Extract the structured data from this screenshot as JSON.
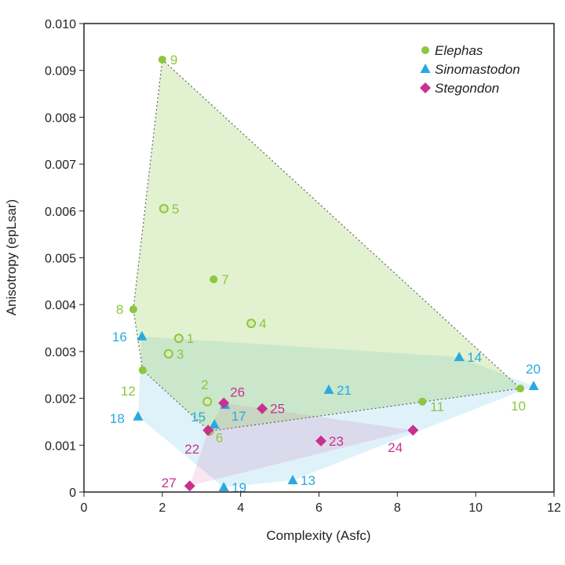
{
  "chart_data": {
    "type": "scatter",
    "title": "",
    "xlabel": "Complexity (Asfc)",
    "ylabel": "Anisotropy (epLsar)",
    "xlim": [
      0,
      12
    ],
    "ylim": [
      0,
      0.01
    ],
    "xticks": [
      "0",
      "2",
      "4",
      "6",
      "8",
      "10",
      "12"
    ],
    "yticks": [
      "0",
      "0.001",
      "0.002",
      "0.003",
      "0.004",
      "0.005",
      "0.006",
      "0.007",
      "0.008",
      "0.009",
      "0.010"
    ],
    "grid": false,
    "legend_position": "top-right",
    "series": [
      {
        "name": "Elephas",
        "marker": "circle",
        "color": "#8dc63f",
        "points": [
          {
            "label": "9",
            "x": 2.0,
            "y": 0.00923
          },
          {
            "label": "5",
            "x": 2.04,
            "y": 0.00605
          },
          {
            "label": "7",
            "x": 3.31,
            "y": 0.00454
          },
          {
            "label": "8",
            "x": 1.26,
            "y": 0.0039
          },
          {
            "label": "4",
            "x": 4.27,
            "y": 0.0036
          },
          {
            "label": "1",
            "x": 2.42,
            "y": 0.00328
          },
          {
            "label": "3",
            "x": 2.16,
            "y": 0.00295
          },
          {
            "label": "12",
            "x": 1.5,
            "y": 0.0026
          },
          {
            "label": "2",
            "x": 3.15,
            "y": 0.00193
          },
          {
            "label": "11",
            "x": 8.64,
            "y": 0.00193
          },
          {
            "label": "10",
            "x": 11.14,
            "y": 0.00221
          },
          {
            "label": "6",
            "x": 3.2,
            "y": 0.0013
          }
        ]
      },
      {
        "name": "Sinomastodon",
        "marker": "triangle",
        "color": "#29a9e0",
        "points": [
          {
            "label": "16",
            "x": 1.48,
            "y": 0.00332
          },
          {
            "label": "14",
            "x": 9.58,
            "y": 0.00288
          },
          {
            "label": "20",
            "x": 11.48,
            "y": 0.00226
          },
          {
            "label": "21",
            "x": 6.25,
            "y": 0.00218
          },
          {
            "label": "18",
            "x": 1.38,
            "y": 0.00161
          },
          {
            "label": "17",
            "x": 3.6,
            "y": 0.00186
          },
          {
            "label": "15",
            "x": 3.33,
            "y": 0.00144
          },
          {
            "label": "19",
            "x": 3.57,
            "y": 0.0001
          },
          {
            "label": "13",
            "x": 5.33,
            "y": 0.00025
          }
        ]
      },
      {
        "name": "Stegondon",
        "marker": "diamond",
        "color": "#c9318f",
        "points": [
          {
            "label": "26",
            "x": 3.57,
            "y": 0.0019
          },
          {
            "label": "25",
            "x": 4.55,
            "y": 0.00178
          },
          {
            "label": "22",
            "x": 3.17,
            "y": 0.00132
          },
          {
            "label": "23",
            "x": 6.05,
            "y": 0.00109
          },
          {
            "label": "24",
            "x": 8.4,
            "y": 0.00132
          },
          {
            "label": "27",
            "x": 2.7,
            "y": 0.00013
          }
        ]
      }
    ]
  }
}
